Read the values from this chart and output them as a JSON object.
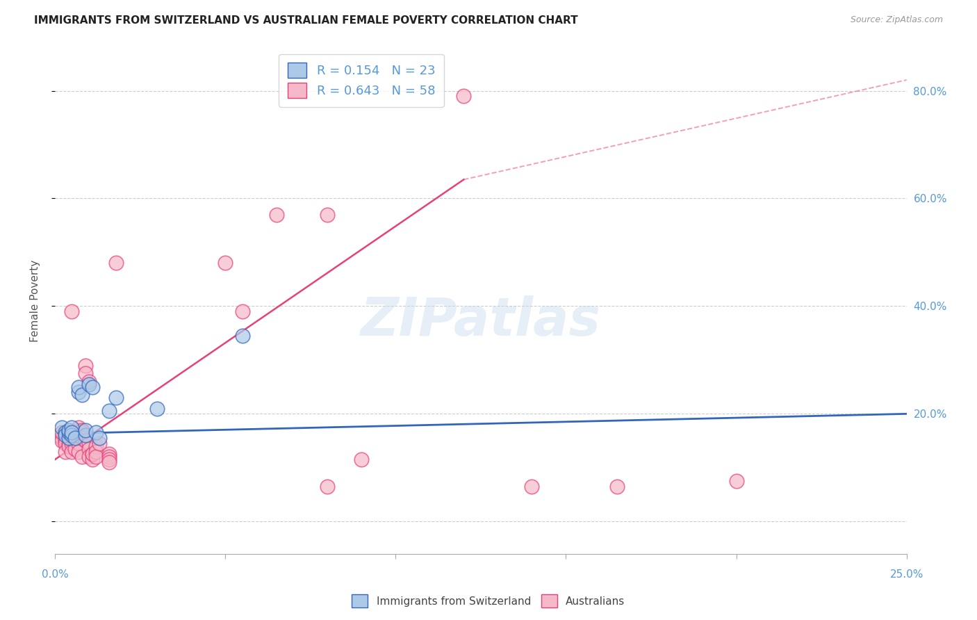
{
  "title": "IMMIGRANTS FROM SWITZERLAND VS AUSTRALIAN FEMALE POVERTY CORRELATION CHART",
  "source": "Source: ZipAtlas.com",
  "ylabel": "Female Poverty",
  "yticks": [
    0.0,
    0.2,
    0.4,
    0.6,
    0.8
  ],
  "xlim": [
    0.0,
    0.25
  ],
  "ylim": [
    -0.06,
    0.88
  ],
  "legend_r1": "R = 0.154   N = 23",
  "legend_r2": "R = 0.643   N = 58",
  "blue_color": "#adc9e8",
  "pink_color": "#f5b8c8",
  "blue_line_color": "#3366bb",
  "pink_line_color": "#e8407a",
  "watermark": "ZIPatlas",
  "swiss_scatter": [
    [
      0.002,
      0.175
    ],
    [
      0.003,
      0.165
    ],
    [
      0.003,
      0.16
    ],
    [
      0.004,
      0.155
    ],
    [
      0.004,
      0.165
    ],
    [
      0.004,
      0.17
    ],
    [
      0.005,
      0.175
    ],
    [
      0.005,
      0.16
    ],
    [
      0.005,
      0.165
    ],
    [
      0.006,
      0.155
    ],
    [
      0.007,
      0.24
    ],
    [
      0.007,
      0.25
    ],
    [
      0.008,
      0.235
    ],
    [
      0.009,
      0.16
    ],
    [
      0.009,
      0.17
    ],
    [
      0.01,
      0.255
    ],
    [
      0.011,
      0.25
    ],
    [
      0.012,
      0.165
    ],
    [
      0.013,
      0.155
    ],
    [
      0.016,
      0.205
    ],
    [
      0.018,
      0.23
    ],
    [
      0.03,
      0.21
    ],
    [
      0.055,
      0.345
    ]
  ],
  "australian_scatter": [
    [
      0.001,
      0.16
    ],
    [
      0.002,
      0.155
    ],
    [
      0.002,
      0.15
    ],
    [
      0.002,
      0.165
    ],
    [
      0.003,
      0.15
    ],
    [
      0.003,
      0.155
    ],
    [
      0.003,
      0.145
    ],
    [
      0.003,
      0.13
    ],
    [
      0.004,
      0.155
    ],
    [
      0.004,
      0.145
    ],
    [
      0.004,
      0.14
    ],
    [
      0.004,
      0.16
    ],
    [
      0.005,
      0.15
    ],
    [
      0.005,
      0.39
    ],
    [
      0.005,
      0.155
    ],
    [
      0.005,
      0.145
    ],
    [
      0.005,
      0.13
    ],
    [
      0.006,
      0.165
    ],
    [
      0.006,
      0.15
    ],
    [
      0.006,
      0.155
    ],
    [
      0.006,
      0.135
    ],
    [
      0.007,
      0.17
    ],
    [
      0.007,
      0.175
    ],
    [
      0.007,
      0.145
    ],
    [
      0.007,
      0.13
    ],
    [
      0.008,
      0.165
    ],
    [
      0.008,
      0.155
    ],
    [
      0.008,
      0.17
    ],
    [
      0.008,
      0.12
    ],
    [
      0.009,
      0.29
    ],
    [
      0.009,
      0.275
    ],
    [
      0.009,
      0.15
    ],
    [
      0.01,
      0.26
    ],
    [
      0.01,
      0.145
    ],
    [
      0.01,
      0.135
    ],
    [
      0.01,
      0.12
    ],
    [
      0.011,
      0.125
    ],
    [
      0.011,
      0.115
    ],
    [
      0.011,
      0.125
    ],
    [
      0.012,
      0.14
    ],
    [
      0.012,
      0.13
    ],
    [
      0.012,
      0.12
    ],
    [
      0.013,
      0.145
    ],
    [
      0.016,
      0.125
    ],
    [
      0.016,
      0.12
    ],
    [
      0.016,
      0.115
    ],
    [
      0.016,
      0.11
    ],
    [
      0.018,
      0.48
    ],
    [
      0.05,
      0.48
    ],
    [
      0.055,
      0.39
    ],
    [
      0.065,
      0.57
    ],
    [
      0.08,
      0.57
    ],
    [
      0.08,
      0.065
    ],
    [
      0.09,
      0.115
    ],
    [
      0.12,
      0.79
    ],
    [
      0.14,
      0.065
    ],
    [
      0.165,
      0.065
    ],
    [
      0.2,
      0.075
    ]
  ],
  "swiss_line": [
    [
      0.0,
      0.163
    ],
    [
      0.25,
      0.2
    ]
  ],
  "pink_line_solid": [
    [
      0.0,
      0.115
    ],
    [
      0.12,
      0.635
    ]
  ],
  "pink_line_dash": [
    [
      0.12,
      0.635
    ],
    [
      0.25,
      0.82
    ]
  ],
  "grid_color": "#cccccc",
  "right_tick_color": "#5599dd",
  "xtick_positions": [
    0.0,
    0.05,
    0.1,
    0.15,
    0.2,
    0.25
  ]
}
